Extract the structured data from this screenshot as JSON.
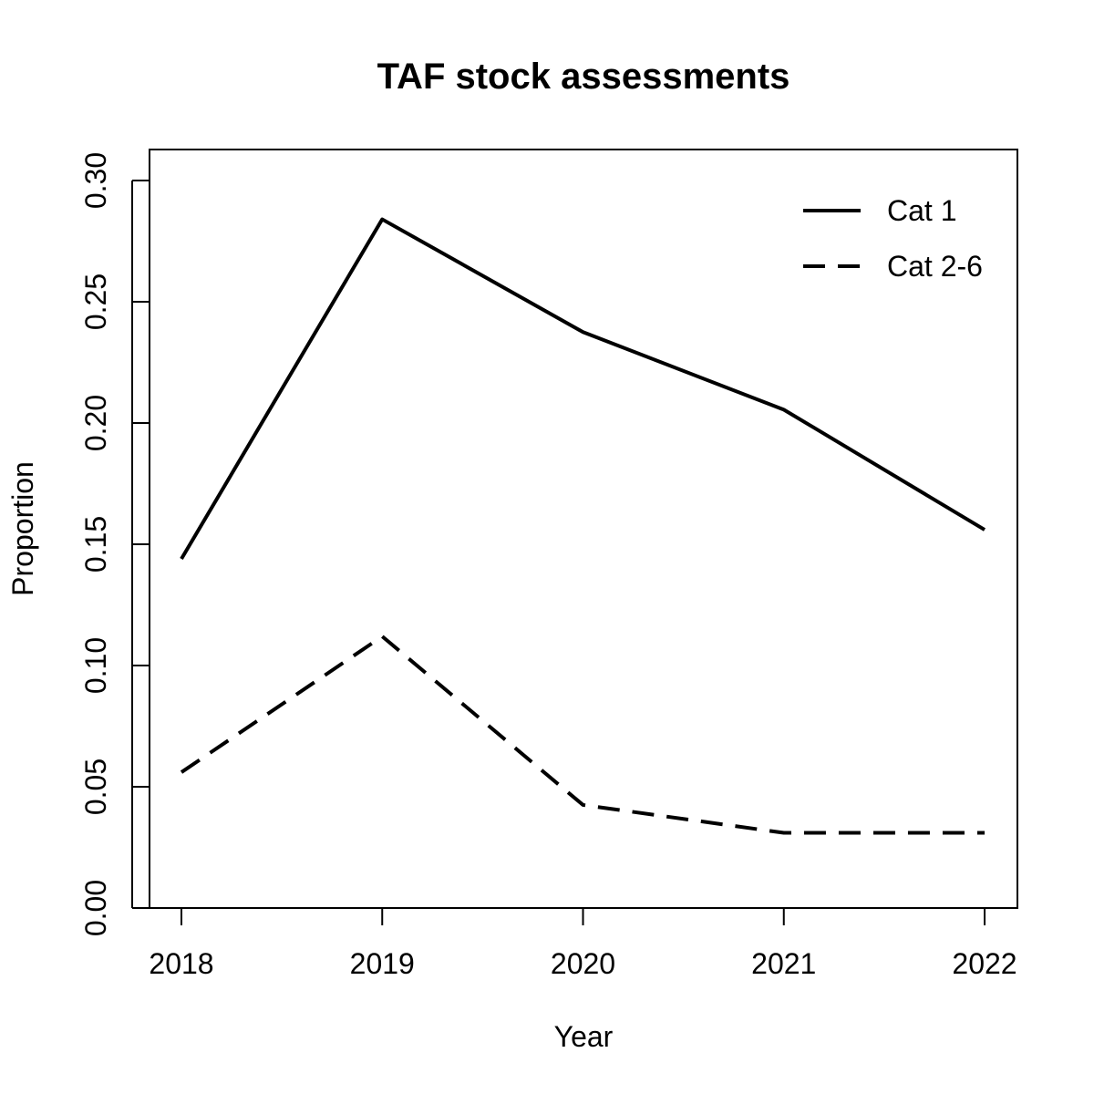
{
  "chart_data": {
    "type": "line",
    "title": "TAF stock assessments",
    "xlabel": "Year",
    "ylabel": "Proportion",
    "x": [
      2018,
      2019,
      2020,
      2021,
      2022
    ],
    "x_tick_labels": [
      "2018",
      "2019",
      "2020",
      "2021",
      "2022"
    ],
    "ylim": [
      0,
      0.3
    ],
    "y_ticks": [
      0,
      0.05,
      0.1,
      0.15,
      0.2,
      0.25,
      0.3
    ],
    "y_tick_labels": [
      "0.00",
      "0.05",
      "0.10",
      "0.15",
      "0.20",
      "0.25",
      "0.30"
    ],
    "grid": false,
    "legend_position": "top-right",
    "series": [
      {
        "name": "Cat 1",
        "line_style": "solid",
        "color": "#000000",
        "values": [
          0.144,
          0.284,
          0.2375,
          0.2055,
          0.156
        ]
      },
      {
        "name": "Cat 2-6",
        "line_style": "dashed",
        "color": "#000000",
        "values": [
          0.056,
          0.112,
          0.0425,
          0.031,
          0.031
        ]
      }
    ]
  }
}
